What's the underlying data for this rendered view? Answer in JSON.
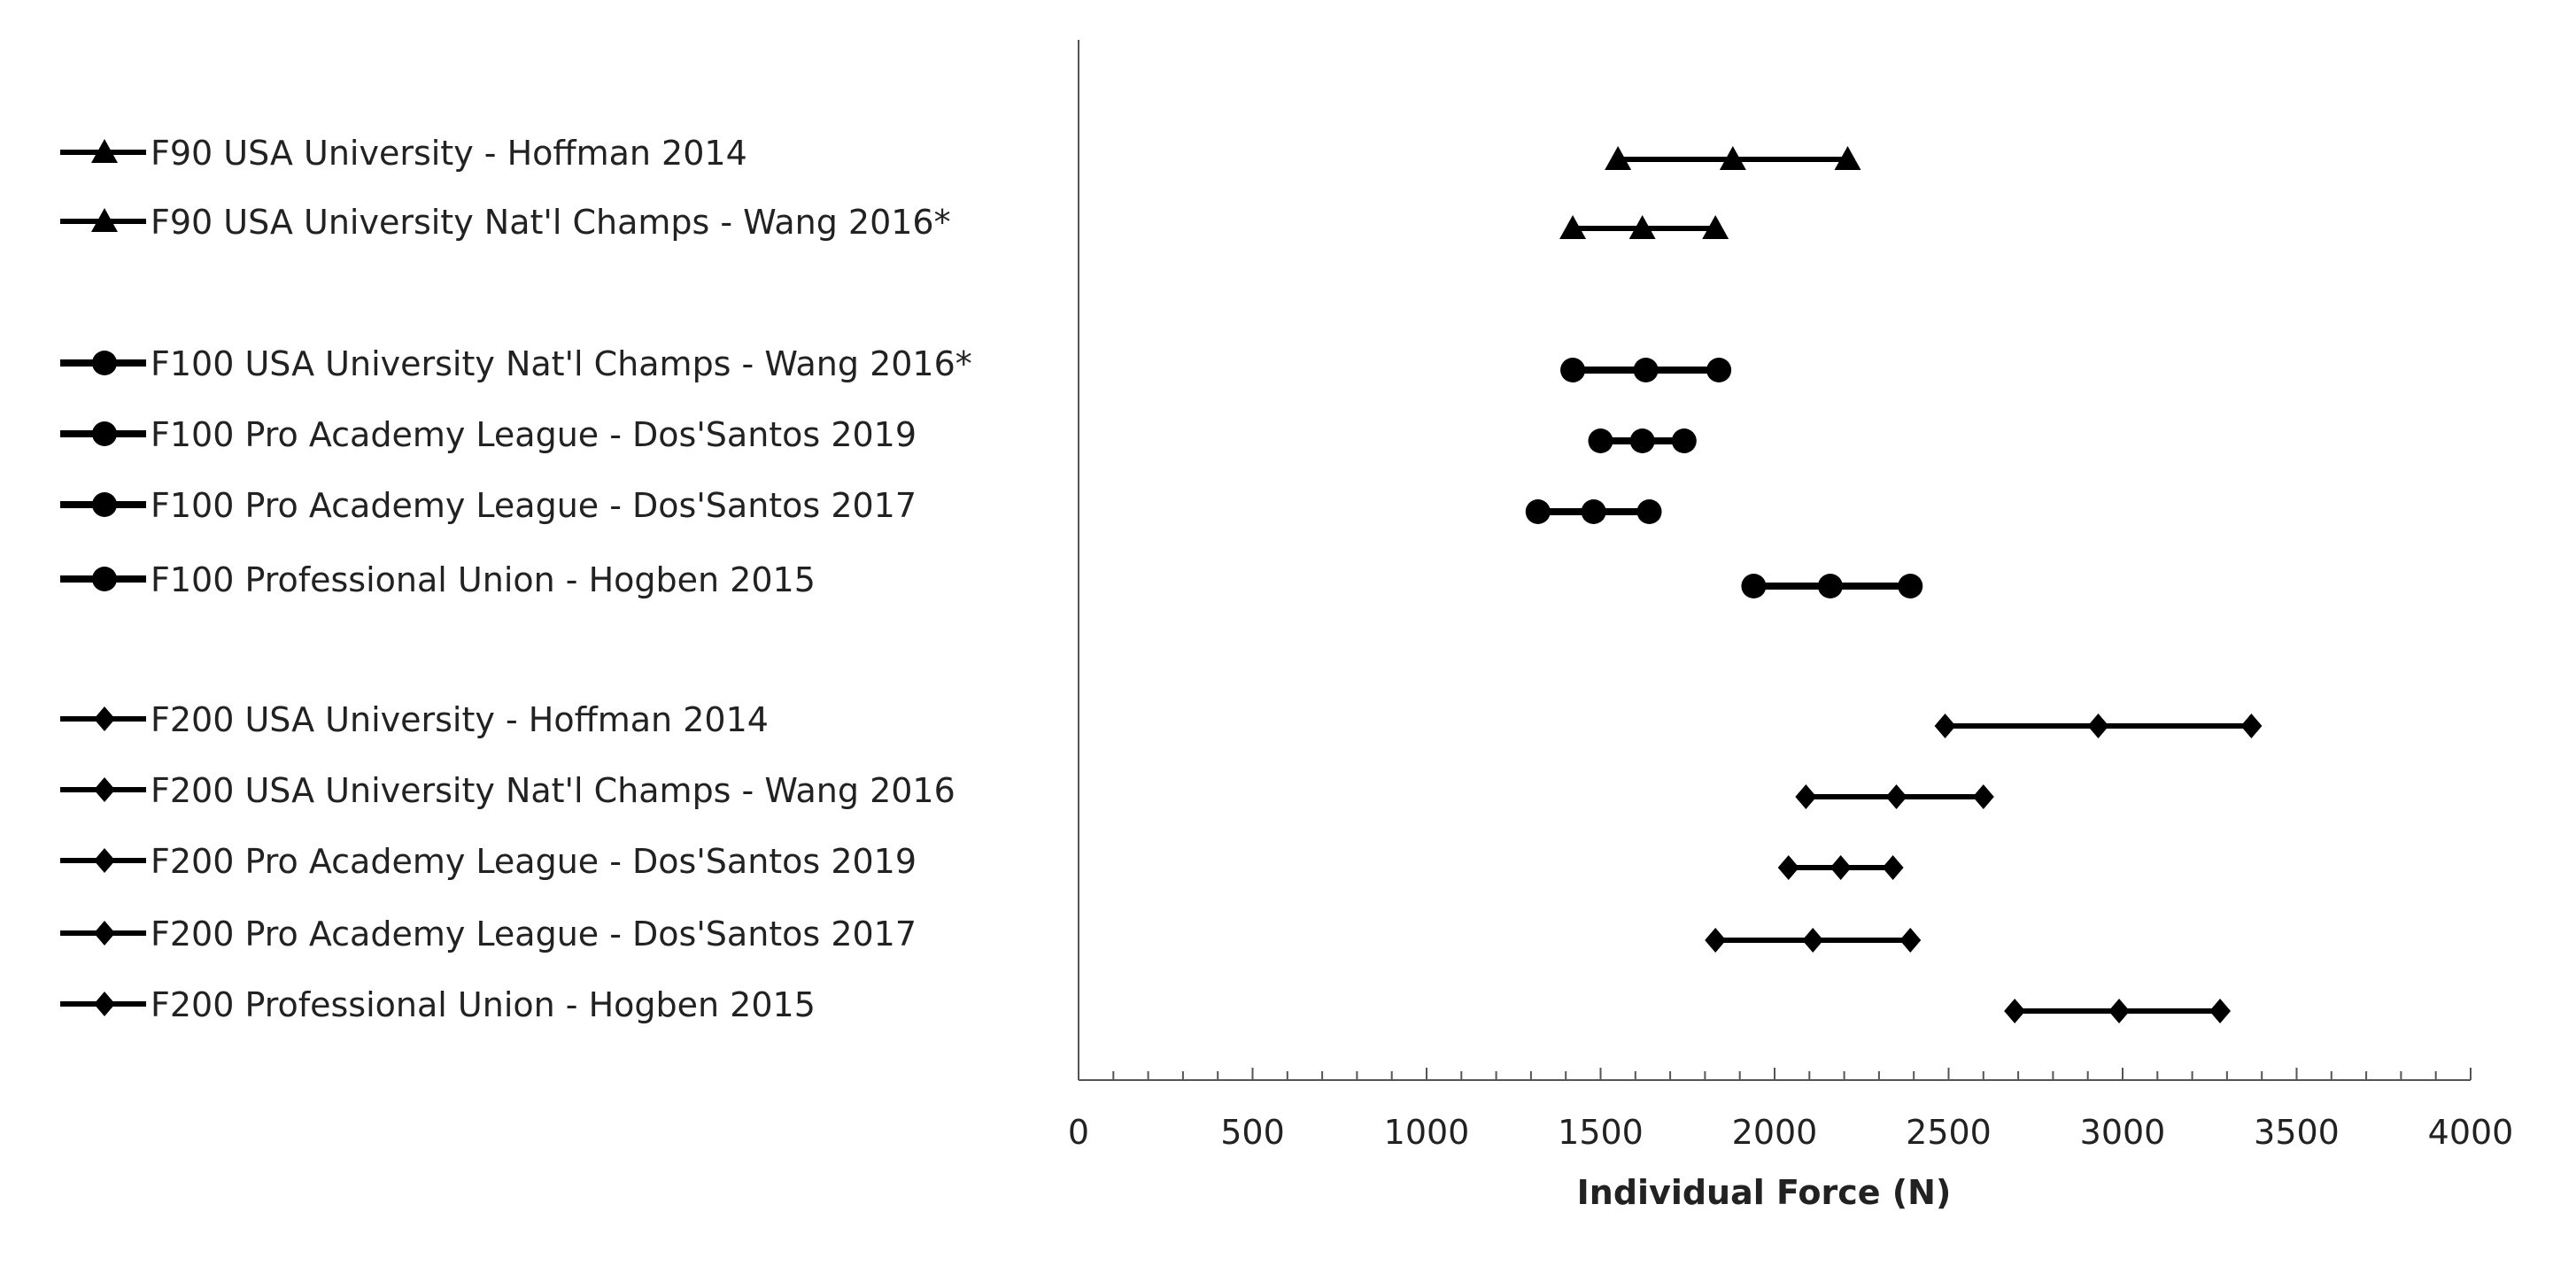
{
  "chart_data": {
    "type": "scatter",
    "xlabel": "Individual Force (N)",
    "xlim": [
      0,
      4000
    ],
    "x_major_ticks": [
      0,
      500,
      1000,
      1500,
      2000,
      2500,
      3000,
      3500,
      4000
    ],
    "x_minor_step": 100,
    "grid": false,
    "legend_placement": "left",
    "line_color": "#000000",
    "series": [
      {
        "name": "F90 USA University - Hoffman 2014",
        "marker": "triangle",
        "values": [
          1550,
          1880,
          2210
        ]
      },
      {
        "name": "F90 USA University Nat'l Champs - Wang 2016*",
        "marker": "triangle",
        "values": [
          1420,
          1620,
          1830
        ]
      },
      {
        "name": "F100 USA University Nat'l Champs - Wang 2016*",
        "marker": "circle",
        "values": [
          1420,
          1630,
          1840
        ]
      },
      {
        "name": "F100 Pro Academy League - Dos'Santos 2019",
        "marker": "circle",
        "values": [
          1500,
          1620,
          1740
        ]
      },
      {
        "name": "F100 Pro Academy League - Dos'Santos 2017",
        "marker": "circle",
        "values": [
          1320,
          1480,
          1640
        ]
      },
      {
        "name": "F100 Professional Union - Hogben 2015",
        "marker": "circle",
        "values": [
          1940,
          2160,
          2390
        ]
      },
      {
        "name": "F200 USA University - Hoffman 2014",
        "marker": "diamond",
        "values": [
          2490,
          2930,
          3370
        ]
      },
      {
        "name": "F200 USA University Nat'l Champs - Wang 2016",
        "marker": "diamond",
        "values": [
          2090,
          2350,
          2600
        ]
      },
      {
        "name": "F200 Pro Academy League - Dos'Santos 2019",
        "marker": "diamond",
        "values": [
          2040,
          2190,
          2340
        ]
      },
      {
        "name": "F200 Pro Academy League - Dos'Santos 2017",
        "marker": "diamond",
        "values": [
          1830,
          2110,
          2390
        ]
      },
      {
        "name": "F200 Professional Union - Hogben 2015",
        "marker": "diamond",
        "values": [
          2690,
          2990,
          3280
        ]
      }
    ]
  }
}
